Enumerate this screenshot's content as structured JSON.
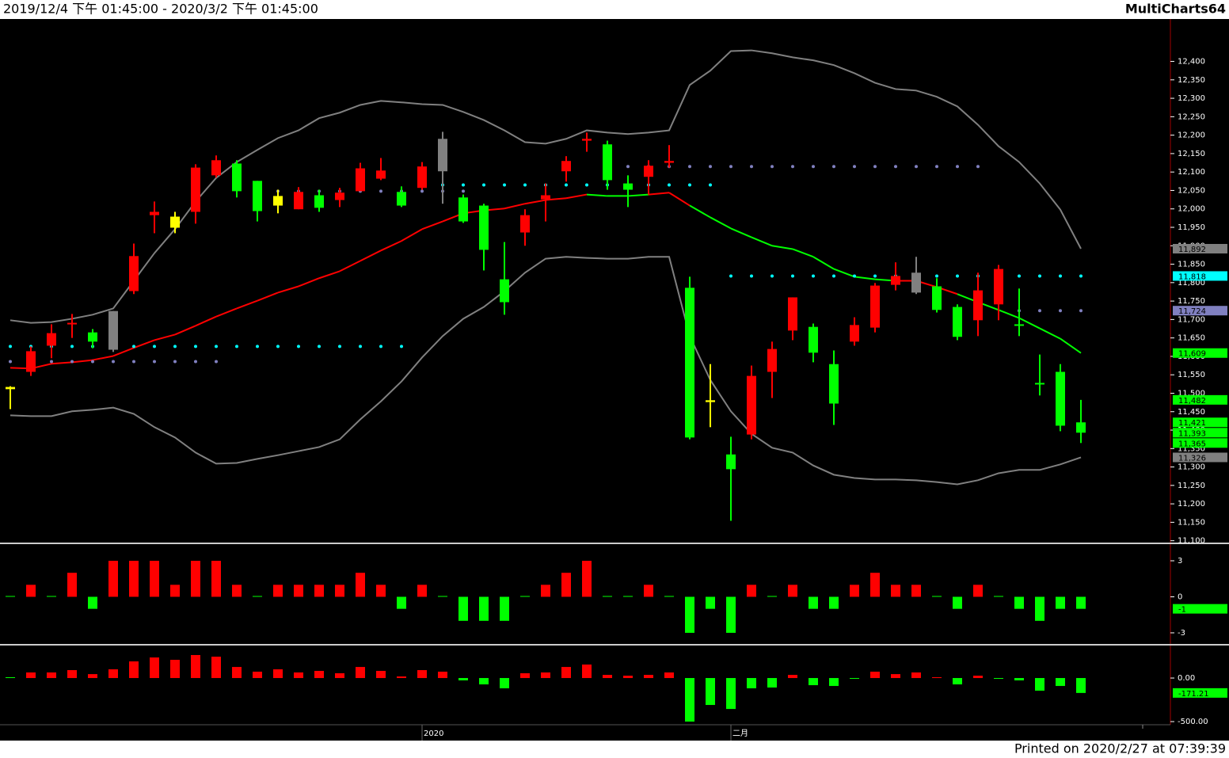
{
  "header": {
    "range": "2019/12/4 下午 01:45:00 - 2020/3/2 下午 01:45:00",
    "app": "MultiCharts64"
  },
  "footer": "Printed on 2020/2/27 at 07:39:39",
  "chart_data": [
    {
      "type": "candlestick",
      "categories": [
        null,
        null,
        null,
        null,
        null,
        null,
        null,
        null,
        null,
        null,
        null,
        null,
        null,
        null,
        null,
        null,
        null,
        null,
        null,
        null,
        "2020",
        null,
        null,
        null,
        null,
        null,
        null,
        null,
        null,
        null,
        null,
        null,
        null,
        null,
        null,
        "二月",
        null,
        null,
        null,
        null,
        null,
        null,
        null,
        null,
        null,
        null,
        null,
        null,
        null,
        null,
        null,
        null,
        null
      ],
      "open": [
        11511,
        11558,
        11629,
        11687,
        11665,
        11618,
        11777,
        11983,
        11949,
        11992,
        12091,
        12123,
        12076,
        12009,
        11999,
        12037,
        12024,
        12048,
        12082,
        12046,
        12057,
        12102,
        12031,
        12009,
        11809,
        11936,
        12026,
        12102,
        12185,
        12175,
        12069,
        12087,
        12125,
        11786,
        11476,
        11334,
        11388,
        11558,
        11670,
        11680,
        11579,
        11640,
        11678,
        11794,
        11773,
        11790,
        11734,
        11698,
        11741,
        11687,
        11528,
        11558,
        11421
      ],
      "high": [
        11519,
        11627,
        11687,
        11715,
        11674,
        11723,
        11906,
        12020,
        11992,
        12121,
        12145,
        12132,
        12076,
        12052,
        12059,
        12052,
        12057,
        12125,
        12138,
        12061,
        12127,
        12209,
        12039,
        12014,
        11910,
        11999,
        12069,
        12143,
        12207,
        12185,
        12091,
        12132,
        12173,
        11816,
        11579,
        11382,
        11575,
        11640,
        11760,
        11689,
        11616,
        11706,
        11799,
        11855,
        11870,
        11812,
        11741,
        11827,
        11848,
        11784,
        11605,
        11579,
        11482
      ],
      "low": [
        11457,
        11547,
        11595,
        11650,
        11622,
        11612,
        11769,
        11934,
        11934,
        11960,
        12085,
        12031,
        11966,
        11988,
        11999,
        11992,
        12005,
        12048,
        12078,
        12005,
        12052,
        12014,
        11962,
        11833,
        11713,
        11900,
        11966,
        12074,
        12155,
        12052,
        12005,
        12039,
        12112,
        11375,
        11408,
        11154,
        11375,
        11487,
        11644,
        11584,
        11414,
        11629,
        11665,
        11779,
        11769,
        11719,
        11644,
        11655,
        11698,
        11655,
        11494,
        11397,
        11365
      ],
      "close": [
        11517,
        11614,
        11663,
        11691,
        11640,
        11723,
        11872,
        11992,
        11979,
        12112,
        12132,
        12048,
        11994,
        12035,
        12046,
        12003,
        12044,
        12110,
        12104,
        12009,
        12115,
        12190,
        11966,
        11889,
        11747,
        11983,
        12037,
        12130,
        12190,
        12078,
        12052,
        12117,
        12130,
        11380,
        11481,
        11294,
        11547,
        11620,
        11760,
        11610,
        11472,
        11685,
        11792,
        11818,
        11827,
        11726,
        11653,
        11779,
        11837,
        11683,
        11524,
        11412,
        11393
      ],
      "colors": [
        "#ffff00",
        "#ff0000",
        "#ff0000",
        "#ff0000",
        "#00ff00",
        "#808080",
        "#ff0000",
        "#ff0000",
        "#ffff00",
        "#ff0000",
        "#ff0000",
        "#00ff00",
        "#00ff00",
        "#ffff00",
        "#ff0000",
        "#00ff00",
        "#ff0000",
        "#ff0000",
        "#ff0000",
        "#00ff00",
        "#ff0000",
        "#808080",
        "#00ff00",
        "#00ff00",
        "#00ff00",
        "#ff0000",
        "#ff0000",
        "#ff0000",
        "#ff0000",
        "#00ff00",
        "#00ff00",
        "#ff0000",
        "#ff0000",
        "#00ff00",
        "#ffff00",
        "#00ff00",
        "#ff0000",
        "#ff0000",
        "#ff0000",
        "#00ff00",
        "#00ff00",
        "#ff0000",
        "#ff0000",
        "#ff0000",
        "#808080",
        "#00ff00",
        "#00ff00",
        "#ff0000",
        "#ff0000",
        "#00ff00",
        "#00ff00",
        "#00ff00",
        "#00ff00"
      ],
      "last_labels": {
        "high": "11,482",
        "open": "11,421",
        "close": "11,393",
        "low": "11,365"
      },
      "upper": {
        "color": "#808080",
        "values": [
          11698,
          11691,
          11693,
          11702,
          11713,
          11730,
          11805,
          11880,
          11945,
          12020,
          12084,
          12127,
          12160,
          12192,
          12213,
          12246,
          12261,
          12282,
          12293,
          12289,
          12284,
          12282,
          12263,
          12241,
          12213,
          12181,
          12177,
          12190,
          12213,
          12207,
          12203,
          12207,
          12213,
          12336,
          12375,
          12428,
          12430,
          12422,
          12411,
          12403,
          12390,
          12368,
          12342,
          12325,
          12321,
          12304,
          12278,
          12228,
          12170,
          12127,
          12069,
          11998,
          11892
        ],
        "last_label": "11,892"
      },
      "middle": {
        "colors": [
          "#00ff00",
          "#ff0000",
          "#ff0000",
          "#ff0000",
          "#ff0000",
          "#ff0000",
          "#ff0000",
          "#ff0000",
          "#ff0000",
          "#ff0000",
          "#ff0000",
          "#ff0000",
          "#ff0000",
          "#ff0000",
          "#ff0000",
          "#ff0000",
          "#ff0000",
          "#ff0000",
          "#ff0000",
          "#ff0000",
          "#ff0000",
          "#ff0000",
          "#ff0000",
          "#ff0000",
          "#ff0000",
          "#ff0000",
          "#ff0000",
          "#ff0000",
          "#ff0000",
          "#00ff00",
          "#00ff00",
          "#00ff00",
          "#ff0000",
          "#ff0000",
          "#00ff00",
          "#00ff00",
          "#00ff00",
          "#00ff00",
          "#00ff00",
          "#00ff00",
          "#00ff00",
          "#00ff00",
          "#00ff00",
          "#00ff00",
          "#ff0000",
          "#ff0000",
          "#ff0000",
          "#00ff00",
          "#00ff00",
          "#00ff00",
          "#00ff00",
          "#00ff00",
          "#00ff00"
        ],
        "values": [
          11569,
          11567,
          11580,
          11584,
          11590,
          11601,
          11623,
          11644,
          11659,
          11683,
          11708,
          11730,
          11751,
          11773,
          11790,
          11812,
          11831,
          11859,
          11887,
          11913,
          11945,
          11966,
          11988,
          11996,
          12001,
          12014,
          12024,
          12029,
          12039,
          12035,
          12035,
          12039,
          12044,
          12009,
          11977,
          11947,
          11923,
          11900,
          11891,
          11870,
          11837,
          11816,
          11809,
          11805,
          11805,
          11788,
          11769,
          11747,
          11726,
          11704,
          11676,
          11648,
          11609
        ],
        "last_label": "11,609"
      },
      "lower": {
        "color": "#808080",
        "values": [
          11440,
          11438,
          11438,
          11451,
          11455,
          11461,
          11444,
          11408,
          11380,
          11339,
          11309,
          11311,
          11322,
          11332,
          11343,
          11354,
          11375,
          11429,
          11478,
          11532,
          11597,
          11655,
          11702,
          11734,
          11777,
          11827,
          11865,
          11870,
          11867,
          11865,
          11865,
          11870,
          11870,
          11655,
          11536,
          11451,
          11390,
          11352,
          11339,
          11304,
          11279,
          11270,
          11266,
          11266,
          11264,
          11259,
          11253,
          11264,
          11283,
          11292,
          11292,
          11307,
          11326
        ],
        "last_label": "11,326"
      },
      "cyan_dots": {
        "color": "#00ffff",
        "values": [
          11627,
          11627,
          11627,
          11627,
          11627,
          11627,
          11627,
          11627,
          11627,
          11627,
          11627,
          11627,
          11627,
          11627,
          11627,
          11627,
          11627,
          11627,
          11627,
          11627,
          12065,
          12065,
          12065,
          12065,
          12065,
          12065,
          12065,
          12065,
          12065,
          12065,
          12065,
          12065,
          12065,
          12065,
          12065,
          11818,
          11818,
          11818,
          11818,
          11818,
          11818,
          11818,
          11818,
          11818,
          11818,
          11818,
          11818,
          11818,
          11818,
          11818,
          11818,
          11818,
          11818
        ],
        "last_label": "11,818"
      },
      "lavender_dots": {
        "color": "#8080c0",
        "values": [
          11586,
          11586,
          11586,
          11586,
          11586,
          11586,
          11586,
          11586,
          11586,
          11586,
          11586,
          null,
          12048,
          12048,
          12048,
          12048,
          12048,
          12048,
          12048,
          12048,
          12048,
          12048,
          12048,
          null,
          null,
          null,
          null,
          null,
          null,
          null,
          12115,
          12115,
          12115,
          12115,
          12115,
          12115,
          12115,
          12115,
          12115,
          12115,
          12115,
          12115,
          12115,
          12115,
          12115,
          12115,
          12115,
          12115,
          null,
          11724,
          11724,
          11724,
          11724
        ],
        "last_label": "11,724"
      },
      "ylim": [
        11095,
        12515
      ],
      "yticks": [
        {
          "value": 11100,
          "label": "11,100"
        },
        {
          "value": 11150,
          "label": "11,150"
        },
        {
          "value": 11200,
          "label": "11,200"
        },
        {
          "value": 11250,
          "label": "11,250"
        },
        {
          "value": 11300,
          "label": "11,300"
        },
        {
          "value": 11350,
          "label": "11,350"
        },
        {
          "value": 11400,
          "label": "11,400"
        },
        {
          "value": 11450,
          "label": "11,450"
        },
        {
          "value": 11500,
          "label": "11,500"
        },
        {
          "value": 11550,
          "label": "11,550"
        },
        {
          "value": 11600,
          "label": "11,600"
        },
        {
          "value": 11650,
          "label": "11,650"
        },
        {
          "value": 11700,
          "label": "11,700"
        },
        {
          "value": 11750,
          "label": "11,750"
        },
        {
          "value": 11800,
          "label": "11,800"
        },
        {
          "value": 11850,
          "label": "11,850"
        },
        {
          "value": 11900,
          "label": "11,900"
        },
        {
          "value": 11950,
          "label": "11,950"
        },
        {
          "value": 12000,
          "label": "12,000"
        },
        {
          "value": 12050,
          "label": "12,050"
        },
        {
          "value": 12100,
          "label": "12,100"
        },
        {
          "value": 12150,
          "label": "12,150"
        },
        {
          "value": 12200,
          "label": "12,200"
        },
        {
          "value": 12250,
          "label": "12,250"
        },
        {
          "value": 12300,
          "label": "12,300"
        },
        {
          "value": 12350,
          "label": "12,350"
        },
        {
          "value": 12400,
          "label": "12,400"
        }
      ]
    },
    {
      "type": "bar",
      "values": [
        0,
        1,
        0,
        2,
        -1,
        3,
        3,
        3,
        1,
        3,
        3,
        1,
        0,
        1,
        1,
        1,
        1,
        2,
        1,
        -1,
        1,
        0,
        -2,
        -2,
        -2,
        0,
        1,
        2,
        3,
        0,
        0,
        1,
        0,
        -3,
        -1,
        -3,
        1,
        0,
        1,
        -1,
        -1,
        1,
        2,
        1,
        1,
        0,
        -1,
        1,
        0,
        -1,
        -2,
        -1,
        -1
      ],
      "colors": [
        "#00ff00",
        "#ff0000",
        "#00ff00",
        "#ff0000",
        "#00ff00",
        "#ff0000",
        "#ff0000",
        "#ff0000",
        "#ff0000",
        "#ff0000",
        "#ff0000",
        "#ff0000",
        "#00ff00",
        "#ff0000",
        "#ff0000",
        "#ff0000",
        "#ff0000",
        "#ff0000",
        "#ff0000",
        "#00ff00",
        "#ff0000",
        "#00ff00",
        "#00ff00",
        "#00ff00",
        "#00ff00",
        "#00ff00",
        "#ff0000",
        "#ff0000",
        "#ff0000",
        "#00ff00",
        "#00ff00",
        "#ff0000",
        "#00ff00",
        "#00ff00",
        "#00ff00",
        "#00ff00",
        "#ff0000",
        "#00ff00",
        "#ff0000",
        "#00ff00",
        "#00ff00",
        "#ff0000",
        "#ff0000",
        "#ff0000",
        "#ff0000",
        "#00ff00",
        "#00ff00",
        "#ff0000",
        "#00ff00",
        "#00ff00",
        "#00ff00",
        "#00ff00",
        "#00ff00"
      ],
      "ylim": [
        -3.86,
        4.32
      ],
      "yticks": [
        -3,
        0,
        3
      ]
    },
    {
      "type": "bar",
      "values": [
        0,
        64,
        64,
        91,
        45,
        100,
        191,
        236,
        209,
        264,
        245,
        127,
        73,
        100,
        64,
        82,
        55,
        127,
        82,
        18,
        91,
        73,
        -27,
        -73,
        -118,
        55,
        64,
        127,
        155,
        36,
        27,
        36,
        64,
        -500,
        -309,
        -355,
        -118,
        -109,
        36,
        -82,
        -91,
        -9,
        73,
        45,
        64,
        9,
        -73,
        27,
        -9,
        -27,
        -145,
        -91,
        -171.21
      ],
      "colors": [
        "#00ff00",
        "#ff0000",
        "#ff0000",
        "#ff0000",
        "#ff0000",
        "#ff0000",
        "#ff0000",
        "#ff0000",
        "#ff0000",
        "#ff0000",
        "#ff0000",
        "#ff0000",
        "#ff0000",
        "#ff0000",
        "#ff0000",
        "#ff0000",
        "#ff0000",
        "#ff0000",
        "#ff0000",
        "#ff0000",
        "#ff0000",
        "#ff0000",
        "#00ff00",
        "#00ff00",
        "#00ff00",
        "#ff0000",
        "#ff0000",
        "#ff0000",
        "#ff0000",
        "#ff0000",
        "#ff0000",
        "#ff0000",
        "#ff0000",
        "#00ff00",
        "#00ff00",
        "#00ff00",
        "#00ff00",
        "#00ff00",
        "#ff0000",
        "#00ff00",
        "#00ff00",
        "#00ff00",
        "#ff0000",
        "#ff0000",
        "#ff0000",
        "#ff0000",
        "#00ff00",
        "#ff0000",
        "#00ff00",
        "#00ff00",
        "#00ff00",
        "#00ff00",
        "#00ff00"
      ],
      "ylim": [
        -536,
        364
      ],
      "yticks": [
        {
          "value": 0,
          "label": "0.00"
        },
        {
          "value": -500,
          "label": "-500.00"
        }
      ]
    }
  ]
}
